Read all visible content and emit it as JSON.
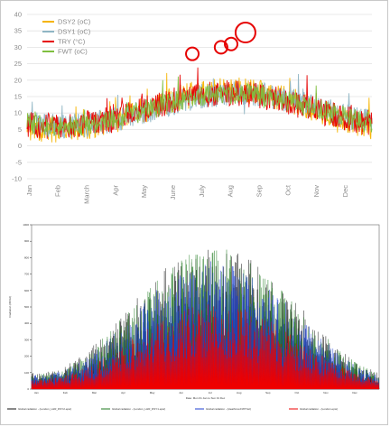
{
  "chart_data": [
    {
      "type": "line",
      "title": "",
      "xlabel": "",
      "ylabel": "",
      "ylim": [
        -10,
        40
      ],
      "yticks": [
        "-10",
        "-5",
        "0",
        "5",
        "10",
        "15",
        "20",
        "25",
        "30",
        "35",
        "40"
      ],
      "months": [
        "Jan",
        "Feb",
        "March",
        "Apr",
        "May",
        "June",
        "July",
        "Aug",
        "Sep",
        "Oct",
        "Nov",
        "Dec"
      ],
      "legend_position": "top-left",
      "grid": true,
      "series": [
        {
          "name": "DSY2 (oC)",
          "color": "#f5b400",
          "envelope": {
            "peak_month": 7.1,
            "winter_mean": 5,
            "summer_mean": 17,
            "jitter": 4.0
          }
        },
        {
          "name": "DSY1 (oC)",
          "color": "#8fb5c4",
          "envelope": {
            "peak_month": 7.3,
            "winter_mean": 6,
            "summer_mean": 16,
            "jitter": 3.8
          }
        },
        {
          "name": "TRY (°C)",
          "color": "#e60000",
          "envelope": {
            "peak_month": 7.0,
            "winter_mean": 6,
            "summer_mean": 16,
            "jitter": 4.0
          }
        },
        {
          "name": "FWT (oC)",
          "color": "#7fbf3f",
          "envelope": {
            "peak_month": 7.2,
            "winter_mean": 6,
            "summer_mean": 16,
            "jitter": 3.2
          }
        }
      ],
      "annotations": [
        {
          "label": "peak circle",
          "month": 5.75,
          "value": 28,
          "color": "#e60000"
        },
        {
          "label": "peak circle",
          "month": 6.75,
          "value": 30,
          "color": "#e60000"
        },
        {
          "label": "peak circle",
          "month": 7.1,
          "value": 31,
          "color": "#e60000"
        },
        {
          "label": "peak circle",
          "month": 7.6,
          "value": 34.5,
          "color": "#e60000"
        }
      ]
    },
    {
      "type": "area",
      "title": "",
      "ylabel": "Irradiation (W/m2)",
      "xlabel": "Date: Mon 01 Jan to Sun 31 Dec",
      "ylim": [
        0,
        1000
      ],
      "yticks": [
        "0",
        "100",
        "200",
        "300",
        "400",
        "500",
        "600",
        "700",
        "800",
        "900",
        "1000"
      ],
      "months": [
        "Jan",
        "Feb",
        "Mar",
        "Apr",
        "May",
        "Jun",
        "Jul",
        "Aug",
        "Sep",
        "Oct",
        "Nov",
        "Dec"
      ],
      "legend_position": "bottom",
      "series": [
        {
          "name": "Global radiation - (London_LHR_DSY2.epw)",
          "color": "#111111",
          "envelope": {
            "winter_peak": 300,
            "summer_peak": 880
          }
        },
        {
          "name": "Global radiation - (London_LHR_DSY1.epw)",
          "color": "#1f7a1f",
          "envelope": {
            "winter_peak": 280,
            "summer_peak": 860
          }
        },
        {
          "name": "Global radiation - (Heathrow.FWT.fwt)",
          "color": "#1f3fd0",
          "envelope": {
            "winter_peak": 250,
            "summer_peak": 780
          }
        },
        {
          "name": "Global radiation - (London.epw)",
          "color": "#ee0000",
          "envelope": {
            "winter_peak": 180,
            "summer_peak": 520
          }
        }
      ]
    }
  ]
}
